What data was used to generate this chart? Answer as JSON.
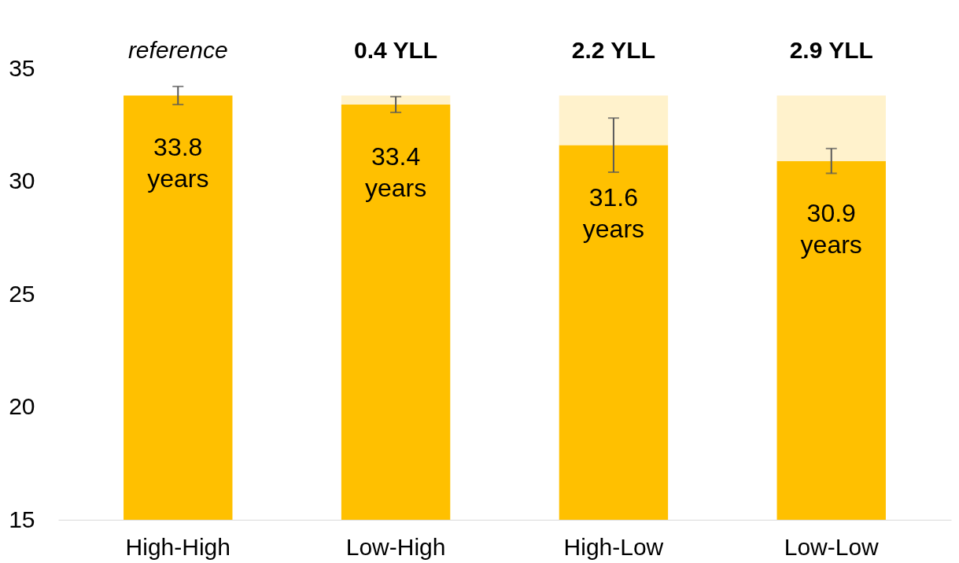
{
  "chart_data": {
    "type": "bar",
    "stacked": true,
    "categories": [
      "High-High",
      "Low-High",
      "High-Low",
      "Low-Low"
    ],
    "series": [
      {
        "color": "#ffc000",
        "values": [
          33.8,
          33.4,
          31.6,
          30.9
        ],
        "errors": [
          0.4,
          0.35,
          [
            30.4,
            32.8
          ],
          [
            30.35,
            31.45
          ]
        ],
        "value_labels": [
          "33.8 years",
          "33.4 years",
          "31.6 years",
          "30.9 years"
        ]
      },
      {
        "color": "#fff2cc",
        "base": [
          null,
          33.4,
          31.6,
          30.9
        ],
        "values": [
          null,
          0.4,
          2.2,
          2.9
        ]
      }
    ],
    "ylim": [
      15,
      35
    ],
    "yticks": [
      15,
      20,
      25,
      30,
      35
    ],
    "grid": false,
    "annotations": [
      "reference",
      "0.4 YLL",
      "2.2 YLL",
      "2.9 YLL"
    ]
  }
}
